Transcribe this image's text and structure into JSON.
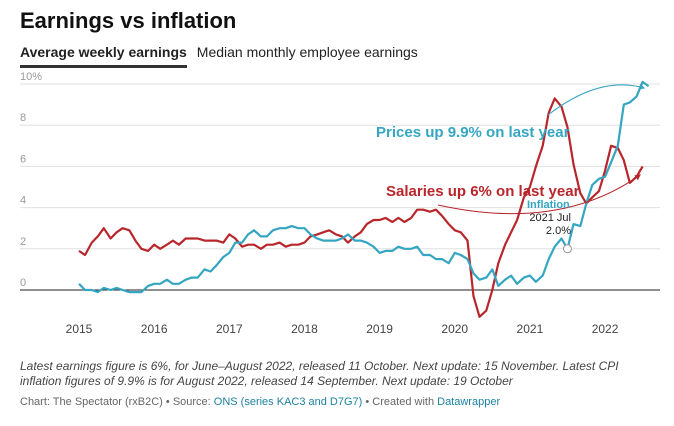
{
  "title": "Earnings vs inflation",
  "tabs": [
    {
      "label": "Average weekly earnings",
      "active": true
    },
    {
      "label": "Median monthly employee earnings",
      "active": false
    }
  ],
  "colors": {
    "earnings": "#b8262b",
    "inflation": "#34a6c2",
    "gridline": "#e0e0e0",
    "zero": "#222222"
  },
  "chart_data": {
    "type": "line",
    "title": "Earnings vs inflation",
    "ylim": [
      -1.5,
      10.5
    ],
    "y_ticks": [
      0,
      2,
      4,
      6,
      8,
      10
    ],
    "y_tick_labels": [
      "0",
      "2",
      "4",
      "6",
      "8",
      "10%"
    ],
    "x_ticks": [
      "2015",
      "2016",
      "2017",
      "2018",
      "2019",
      "2020",
      "2021",
      "2022"
    ],
    "grid": true,
    "series": [
      {
        "name": "Salaries",
        "color": "#b8262b",
        "points": [
          [
            2015.0,
            1.9
          ],
          [
            2015.08,
            1.7
          ],
          [
            2015.17,
            2.3
          ],
          [
            2015.25,
            2.6
          ],
          [
            2015.33,
            3.0
          ],
          [
            2015.42,
            2.5
          ],
          [
            2015.5,
            2.8
          ],
          [
            2015.58,
            3.0
          ],
          [
            2015.67,
            2.9
          ],
          [
            2015.75,
            2.4
          ],
          [
            2015.83,
            2.0
          ],
          [
            2015.92,
            1.9
          ],
          [
            2016.0,
            2.2
          ],
          [
            2016.08,
            2.0
          ],
          [
            2016.17,
            2.2
          ],
          [
            2016.25,
            2.4
          ],
          [
            2016.33,
            2.2
          ],
          [
            2016.42,
            2.5
          ],
          [
            2016.5,
            2.5
          ],
          [
            2016.58,
            2.5
          ],
          [
            2016.67,
            2.4
          ],
          [
            2016.75,
            2.4
          ],
          [
            2016.83,
            2.4
          ],
          [
            2016.92,
            2.3
          ],
          [
            2017.0,
            2.7
          ],
          [
            2017.08,
            2.5
          ],
          [
            2017.17,
            2.1
          ],
          [
            2017.25,
            2.2
          ],
          [
            2017.33,
            2.2
          ],
          [
            2017.42,
            2.0
          ],
          [
            2017.5,
            2.2
          ],
          [
            2017.58,
            2.2
          ],
          [
            2017.67,
            2.3
          ],
          [
            2017.75,
            2.1
          ],
          [
            2017.83,
            2.2
          ],
          [
            2017.92,
            2.2
          ],
          [
            2018.0,
            2.3
          ],
          [
            2018.08,
            2.6
          ],
          [
            2018.17,
            2.7
          ],
          [
            2018.25,
            2.8
          ],
          [
            2018.33,
            2.9
          ],
          [
            2018.42,
            2.7
          ],
          [
            2018.5,
            2.6
          ],
          [
            2018.58,
            2.3
          ],
          [
            2018.67,
            2.6
          ],
          [
            2018.75,
            2.8
          ],
          [
            2018.83,
            3.2
          ],
          [
            2018.92,
            3.4
          ],
          [
            2019.0,
            3.4
          ],
          [
            2019.08,
            3.5
          ],
          [
            2019.17,
            3.3
          ],
          [
            2019.25,
            3.5
          ],
          [
            2019.33,
            3.3
          ],
          [
            2019.42,
            3.5
          ],
          [
            2019.5,
            3.9
          ],
          [
            2019.58,
            3.9
          ],
          [
            2019.67,
            3.8
          ],
          [
            2019.75,
            3.9
          ],
          [
            2019.83,
            3.6
          ],
          [
            2019.92,
            3.2
          ],
          [
            2020.0,
            2.9
          ],
          [
            2020.08,
            2.8
          ],
          [
            2020.17,
            2.4
          ],
          [
            2020.25,
            -0.3
          ],
          [
            2020.33,
            -1.3
          ],
          [
            2020.42,
            -1.0
          ],
          [
            2020.5,
            0.0
          ],
          [
            2020.58,
            1.3
          ],
          [
            2020.67,
            2.2
          ],
          [
            2020.75,
            2.8
          ],
          [
            2020.83,
            3.4
          ],
          [
            2020.92,
            4.5
          ],
          [
            2021.0,
            5.0
          ],
          [
            2021.08,
            6.0
          ],
          [
            2021.17,
            7.0
          ],
          [
            2021.25,
            8.6
          ],
          [
            2021.33,
            9.3
          ],
          [
            2021.42,
            8.9
          ],
          [
            2021.5,
            7.9
          ],
          [
            2021.58,
            6.1
          ],
          [
            2021.67,
            4.7
          ],
          [
            2021.75,
            4.2
          ],
          [
            2021.83,
            4.5
          ],
          [
            2021.92,
            4.8
          ],
          [
            2022.0,
            5.8
          ],
          [
            2022.08,
            7.0
          ],
          [
            2022.17,
            6.9
          ],
          [
            2022.25,
            6.3
          ],
          [
            2022.33,
            5.2
          ],
          [
            2022.42,
            5.5
          ],
          [
            2022.5,
            6.0
          ]
        ]
      },
      {
        "name": "Inflation",
        "color": "#34a6c2",
        "points": [
          [
            2015.0,
            0.3
          ],
          [
            2015.08,
            0.0
          ],
          [
            2015.17,
            0.0
          ],
          [
            2015.25,
            -0.1
          ],
          [
            2015.33,
            0.1
          ],
          [
            2015.42,
            0.0
          ],
          [
            2015.5,
            0.1
          ],
          [
            2015.58,
            0.0
          ],
          [
            2015.67,
            -0.1
          ],
          [
            2015.75,
            -0.1
          ],
          [
            2015.83,
            -0.1
          ],
          [
            2015.92,
            0.2
          ],
          [
            2016.0,
            0.3
          ],
          [
            2016.08,
            0.3
          ],
          [
            2016.17,
            0.5
          ],
          [
            2016.25,
            0.3
          ],
          [
            2016.33,
            0.3
          ],
          [
            2016.42,
            0.5
          ],
          [
            2016.5,
            0.6
          ],
          [
            2016.58,
            0.6
          ],
          [
            2016.67,
            1.0
          ],
          [
            2016.75,
            0.9
          ],
          [
            2016.83,
            1.2
          ],
          [
            2016.92,
            1.6
          ],
          [
            2017.0,
            1.8
          ],
          [
            2017.08,
            2.3
          ],
          [
            2017.17,
            2.3
          ],
          [
            2017.25,
            2.7
          ],
          [
            2017.33,
            2.9
          ],
          [
            2017.42,
            2.6
          ],
          [
            2017.5,
            2.6
          ],
          [
            2017.58,
            2.9
          ],
          [
            2017.67,
            3.0
          ],
          [
            2017.75,
            3.0
          ],
          [
            2017.83,
            3.1
          ],
          [
            2017.92,
            3.0
          ],
          [
            2018.0,
            3.0
          ],
          [
            2018.08,
            2.7
          ],
          [
            2018.17,
            2.5
          ],
          [
            2018.25,
            2.4
          ],
          [
            2018.33,
            2.4
          ],
          [
            2018.42,
            2.4
          ],
          [
            2018.5,
            2.5
          ],
          [
            2018.58,
            2.7
          ],
          [
            2018.67,
            2.4
          ],
          [
            2018.75,
            2.4
          ],
          [
            2018.83,
            2.3
          ],
          [
            2018.92,
            2.1
          ],
          [
            2019.0,
            1.8
          ],
          [
            2019.08,
            1.9
          ],
          [
            2019.17,
            1.9
          ],
          [
            2019.25,
            2.1
          ],
          [
            2019.33,
            2.0
          ],
          [
            2019.42,
            2.0
          ],
          [
            2019.5,
            2.1
          ],
          [
            2019.58,
            1.7
          ],
          [
            2019.67,
            1.7
          ],
          [
            2019.75,
            1.5
          ],
          [
            2019.83,
            1.5
          ],
          [
            2019.92,
            1.3
          ],
          [
            2020.0,
            1.8
          ],
          [
            2020.08,
            1.7
          ],
          [
            2020.17,
            1.5
          ],
          [
            2020.25,
            0.8
          ],
          [
            2020.33,
            0.5
          ],
          [
            2020.42,
            0.6
          ],
          [
            2020.5,
            1.0
          ],
          [
            2020.58,
            0.2
          ],
          [
            2020.67,
            0.5
          ],
          [
            2020.75,
            0.7
          ],
          [
            2020.83,
            0.3
          ],
          [
            2020.92,
            0.6
          ],
          [
            2021.0,
            0.7
          ],
          [
            2021.08,
            0.4
          ],
          [
            2021.17,
            0.7
          ],
          [
            2021.25,
            1.5
          ],
          [
            2021.33,
            2.1
          ],
          [
            2021.42,
            2.5
          ],
          [
            2021.5,
            2.0
          ],
          [
            2021.58,
            3.2
          ],
          [
            2021.67,
            3.1
          ],
          [
            2021.75,
            4.2
          ],
          [
            2021.83,
            5.1
          ],
          [
            2021.92,
            5.4
          ],
          [
            2022.0,
            5.5
          ],
          [
            2022.08,
            6.2
          ],
          [
            2022.17,
            7.0
          ],
          [
            2022.25,
            9.0
          ],
          [
            2022.33,
            9.1
          ],
          [
            2022.42,
            9.4
          ],
          [
            2022.5,
            10.1
          ],
          [
            2022.58,
            9.9
          ]
        ]
      }
    ],
    "annotations": [
      {
        "text": "Prices up 9.9% on last year",
        "color": "#34a6c2"
      },
      {
        "text": "Salaries up 6% on last year",
        "color": "#b8262b"
      },
      {
        "text": "Inflation",
        "color": "#34a6c2"
      },
      {
        "text": "2021 Jul",
        "color": "#222222"
      },
      {
        "text": "2.0%",
        "color": "#222222"
      }
    ]
  },
  "footnote": "Latest earnings figure is 6%, for June–August 2022, released 11 October. Next update: 15 November. Latest CPI inflation figures of 9.9% is for August 2022, released 14 September. Next update: 19 October",
  "credits": {
    "prefix": "Chart: The Spectator (rxB2C) • Source: ",
    "source_link": "ONS (series KAC3 and D7G7)",
    "middle": " • Created with ",
    "tool_link": "Datawrapper"
  }
}
